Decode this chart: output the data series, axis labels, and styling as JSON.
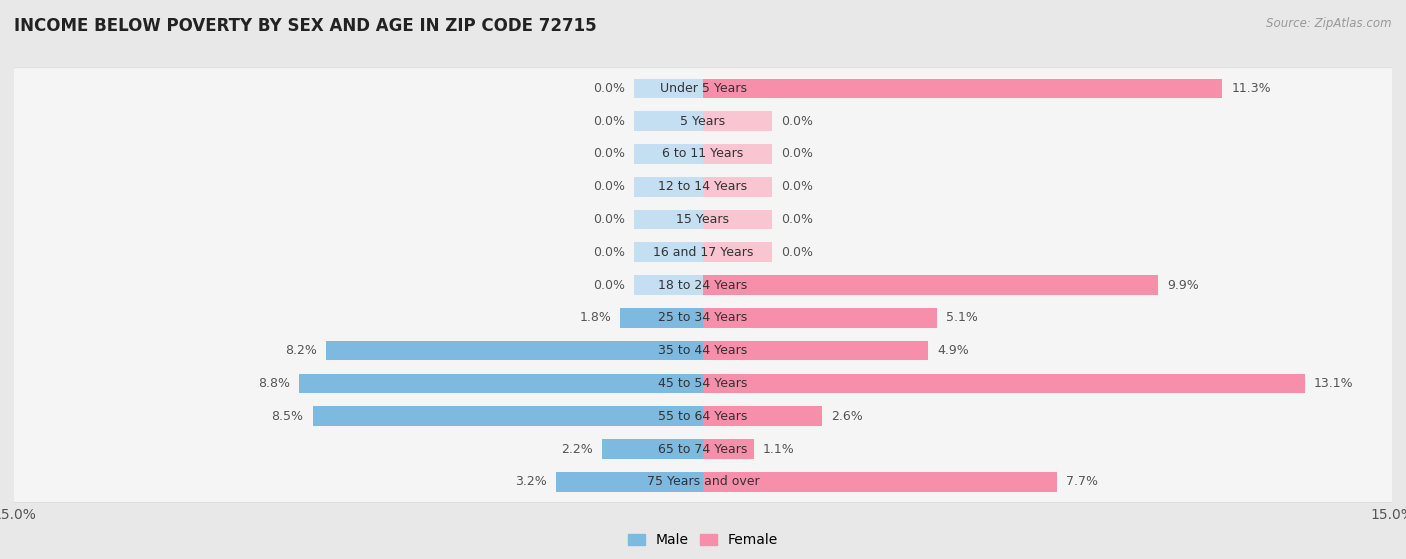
{
  "title": "INCOME BELOW POVERTY BY SEX AND AGE IN ZIP CODE 72715",
  "source": "Source: ZipAtlas.com",
  "categories": [
    "Under 5 Years",
    "5 Years",
    "6 to 11 Years",
    "12 to 14 Years",
    "15 Years",
    "16 and 17 Years",
    "18 to 24 Years",
    "25 to 34 Years",
    "35 to 44 Years",
    "45 to 54 Years",
    "55 to 64 Years",
    "65 to 74 Years",
    "75 Years and over"
  ],
  "male": [
    0.0,
    0.0,
    0.0,
    0.0,
    0.0,
    0.0,
    0.0,
    1.8,
    8.2,
    8.8,
    8.5,
    2.2,
    3.2
  ],
  "female": [
    11.3,
    0.0,
    0.0,
    0.0,
    0.0,
    0.0,
    9.9,
    5.1,
    4.9,
    13.1,
    2.6,
    1.1,
    7.7
  ],
  "male_color": "#7eb9e0",
  "female_color": "#f78fab",
  "male_color_light": "#c5dff2",
  "female_color_light": "#f9c5d0",
  "male_label": "Male",
  "female_label": "Female",
  "xlim": 15.0,
  "background_color": "#e8e8e8",
  "bar_background": "#f5f5f5",
  "title_fontsize": 12,
  "source_fontsize": 8.5,
  "tick_fontsize": 10,
  "label_fontsize": 9,
  "value_fontsize": 9,
  "bar_height": 0.6,
  "stub_size": 1.5
}
